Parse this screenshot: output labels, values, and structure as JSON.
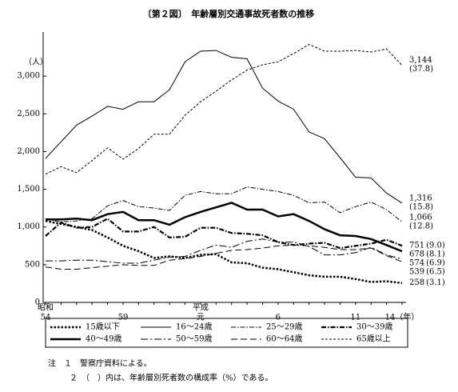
{
  "chart_data": {
    "type": "line",
    "title": "〔第２図〕　年齢層別交通事故死者数の推移",
    "y_unit": "（人）",
    "categories": [
      "54",
      null,
      null,
      null,
      null,
      "59",
      null,
      null,
      null,
      null,
      "元",
      null,
      null,
      null,
      null,
      "6",
      null,
      null,
      null,
      null,
      "11",
      null,
      null,
      "14（年）"
    ],
    "era_labels": [
      "昭和",
      null,
      null,
      null,
      null,
      null,
      null,
      null,
      null,
      null,
      "平成",
      null,
      null,
      null,
      null,
      null,
      null,
      null,
      null,
      null,
      null,
      null,
      null,
      null
    ],
    "ylim": [
      0,
      3500
    ],
    "yticks": [
      0,
      500,
      {
        "value": 1000,
        "label": "1,000"
      },
      {
        "value": 1500,
        "label": "1,500"
      },
      {
        "value": 2000,
        "label": "2,000"
      },
      {
        "value": 2500,
        "label": "2,500"
      },
      {
        "value": 3000,
        "label": "3,000"
      }
    ],
    "series": [
      {
        "name": "15歳以下",
        "color": "#000",
        "style": "dotted",
        "width": 2.5,
        "values": [
          1080,
          1040,
          1000,
          960,
          860,
          750,
          680,
          590,
          610,
          590,
          630,
          640,
          530,
          520,
          460,
          440,
          400,
          360,
          340,
          340,
          310,
          270,
          280,
          258
        ],
        "value_labels": [
          null,
          null,
          null,
          null,
          null,
          null,
          null,
          null,
          null,
          null,
          null,
          null,
          null,
          null,
          null,
          null,
          null,
          null,
          null,
          null,
          null,
          null,
          null,
          "258"
        ],
        "share": "(3.1)"
      },
      {
        "name": "16〜24歳",
        "color": "#000",
        "style": "solid",
        "width": 1,
        "values": [
          1910,
          2130,
          2350,
          2470,
          2600,
          2560,
          2660,
          2660,
          2820,
          3190,
          3330,
          3340,
          3250,
          3230,
          2840,
          2670,
          2560,
          2260,
          2170,
          1920,
          1660,
          1650,
          1450,
          1316
        ],
        "value_labels": [
          null,
          null,
          null,
          null,
          null,
          null,
          null,
          null,
          null,
          null,
          null,
          null,
          null,
          null,
          null,
          null,
          null,
          null,
          null,
          null,
          null,
          null,
          null,
          "1,316"
        ],
        "share": "(15.8)"
      },
      {
        "name": "25〜29歳",
        "color": "#000",
        "style": "dashdot",
        "width": 1,
        "values": [
          1100,
          1070,
          1080,
          1110,
          1280,
          1350,
          1270,
          1250,
          1220,
          1420,
          1470,
          1440,
          1440,
          1530,
          1500,
          1470,
          1420,
          1320,
          1330,
          1190,
          1270,
          1330,
          1230,
          1066
        ],
        "value_labels": [
          null,
          null,
          null,
          null,
          null,
          null,
          null,
          null,
          null,
          null,
          null,
          null,
          null,
          null,
          null,
          null,
          null,
          null,
          null,
          null,
          null,
          null,
          null,
          "1,066"
        ],
        "share": "(12.8)"
      },
      {
        "name": "30〜39歳",
        "color": "#000",
        "style": "dashdot",
        "width": 2.2,
        "values": [
          880,
          1060,
          990,
          1000,
          1110,
          940,
          940,
          1000,
          860,
          870,
          990,
          990,
          920,
          910,
          890,
          800,
          760,
          780,
          790,
          720,
          750,
          780,
          830,
          751
        ],
        "value_labels": [
          null,
          null,
          null,
          null,
          null,
          null,
          null,
          null,
          null,
          null,
          null,
          null,
          null,
          null,
          null,
          null,
          null,
          null,
          null,
          null,
          null,
          null,
          null,
          "751"
        ],
        "share": "(9.0)"
      },
      {
        "name": "40〜49歳",
        "color": "#000",
        "style": "solid",
        "width": 2.5,
        "values": [
          1100,
          1100,
          1110,
          1090,
          1170,
          1200,
          1090,
          1090,
          1030,
          1130,
          1200,
          1260,
          1320,
          1230,
          1230,
          1140,
          1170,
          1080,
          970,
          890,
          880,
          840,
          760,
          678
        ],
        "value_labels": [
          null,
          null,
          null,
          null,
          null,
          null,
          null,
          null,
          null,
          null,
          null,
          null,
          null,
          null,
          null,
          null,
          null,
          null,
          null,
          null,
          null,
          null,
          null,
          "678"
        ],
        "share": "(8.1)"
      },
      {
        "name": "50〜59歳",
        "color": "#000",
        "style": "longdashdot",
        "width": 1,
        "values": [
          550,
          550,
          560,
          560,
          540,
          520,
          520,
          560,
          600,
          610,
          690,
          760,
          730,
          810,
          840,
          800,
          800,
          740,
          630,
          630,
          660,
          730,
          630,
          574
        ],
        "value_labels": [
          null,
          null,
          null,
          null,
          null,
          null,
          null,
          null,
          null,
          null,
          null,
          null,
          null,
          null,
          null,
          null,
          null,
          null,
          null,
          null,
          null,
          null,
          null,
          "574"
        ],
        "share": "(6.9)"
      },
      {
        "name": "60〜64歳",
        "color": "#000",
        "style": "longdash",
        "width": 1,
        "values": [
          470,
          440,
          440,
          460,
          480,
          500,
          490,
          490,
          560,
          580,
          610,
          650,
          690,
          700,
          720,
          750,
          760,
          750,
          730,
          700,
          700,
          720,
          620,
          539
        ],
        "value_labels": [
          null,
          null,
          null,
          null,
          null,
          null,
          null,
          null,
          null,
          null,
          null,
          null,
          null,
          null,
          null,
          null,
          null,
          null,
          null,
          null,
          null,
          null,
          null,
          "539"
        ],
        "share": "(6.5)"
      },
      {
        "name": "65歳以上",
        "color": "#000",
        "style": "shortdash",
        "width": 1,
        "values": [
          1700,
          1800,
          1720,
          1880,
          2050,
          1900,
          2040,
          2230,
          2230,
          2480,
          2660,
          2800,
          2950,
          3080,
          3150,
          3190,
          3300,
          3420,
          3330,
          3330,
          3340,
          3320,
          3360,
          3144
        ],
        "value_labels": [
          null,
          null,
          null,
          null,
          null,
          null,
          null,
          null,
          null,
          null,
          null,
          null,
          null,
          null,
          null,
          null,
          null,
          null,
          null,
          null,
          null,
          null,
          null,
          "3,144"
        ],
        "share": "(37.8)"
      }
    ],
    "notes": [
      "注　１　警察庁資料による。",
      "２　（　）内は、年齢層別死者数の構成率（%）である。"
    ]
  }
}
